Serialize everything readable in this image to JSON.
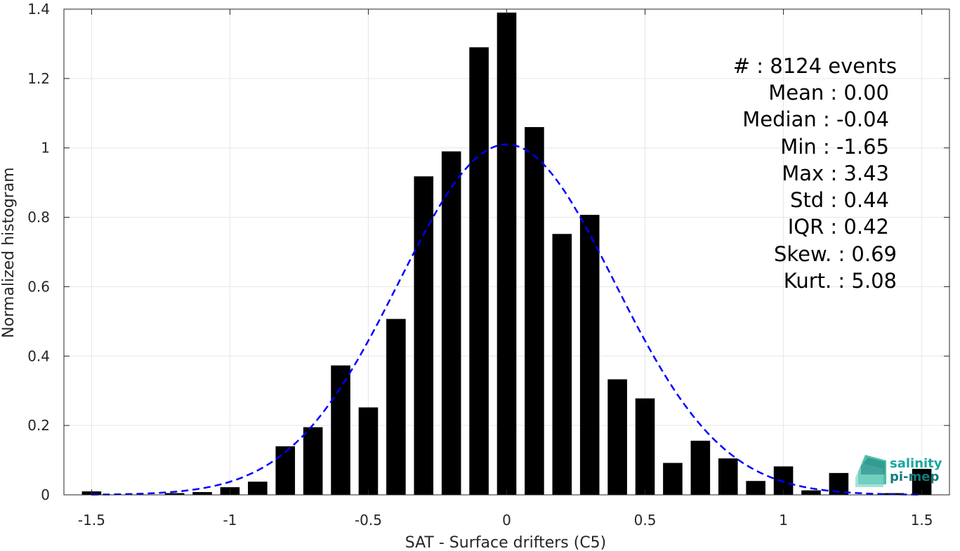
{
  "chart_data": {
    "type": "bar",
    "xlabel": "SAT - Surface drifters (C5)",
    "ylabel": "Normalized histogram",
    "xlim": [
      -1.6,
      1.6
    ],
    "ylim": [
      0,
      1.4
    ],
    "x_ticks": [
      -1.5,
      -1,
      -0.5,
      0,
      0.5,
      1,
      1.5
    ],
    "x_tick_labels": [
      "-1.5",
      "-1",
      "-0.5",
      "0",
      "0.5",
      "1",
      "1.5"
    ],
    "y_ticks": [
      0,
      0.2,
      0.4,
      0.6,
      0.8,
      1,
      1.2,
      1.4
    ],
    "y_tick_labels": [
      "0",
      "0.2",
      "0.4",
      "0.6",
      "0.8",
      "1",
      "1.2",
      "1.4"
    ],
    "grid": true,
    "bar_color": "#000000",
    "bins": {
      "centers": [
        -1.5,
        -1.4,
        -1.3,
        -1.2,
        -1.1,
        -1.0,
        -0.9,
        -0.8,
        -0.7,
        -0.6,
        -0.5,
        -0.4,
        -0.3,
        -0.2,
        -0.1,
        0.0,
        0.1,
        0.2,
        0.3,
        0.4,
        0.5,
        0.6,
        0.7,
        0.8,
        0.9,
        1.0,
        1.1,
        1.2,
        1.3,
        1.4,
        1.5
      ],
      "values": [
        0.01,
        0.0,
        0.0,
        0.005,
        0.008,
        0.022,
        0.038,
        0.14,
        0.195,
        0.373,
        0.252,
        0.507,
        0.918,
        0.99,
        1.29,
        1.39,
        1.06,
        0.752,
        0.807,
        0.333,
        0.278,
        0.092,
        0.156,
        0.105,
        0.04,
        0.082,
        0.013,
        0.063,
        0.0,
        0.005,
        0.075
      ]
    },
    "normal_fit": {
      "mean": 0.0,
      "std": 0.39,
      "peak": 1.01,
      "color": "#0000ff",
      "style": "dashed"
    },
    "stats": {
      "lines": [
        "#  : 8124 events",
        "Mean : 0.00",
        "Median : -0.04",
        "Min : -1.65",
        "Max : 3.43",
        "Std : 0.44",
        "IQR : 0.42",
        "Skew. : 0.69",
        "Kurt. : 5.08"
      ]
    }
  },
  "logo": {
    "line1": "salinity",
    "line2": "pi-mep",
    "color1": "#1aa7a0",
    "color2": "#147a7a"
  }
}
